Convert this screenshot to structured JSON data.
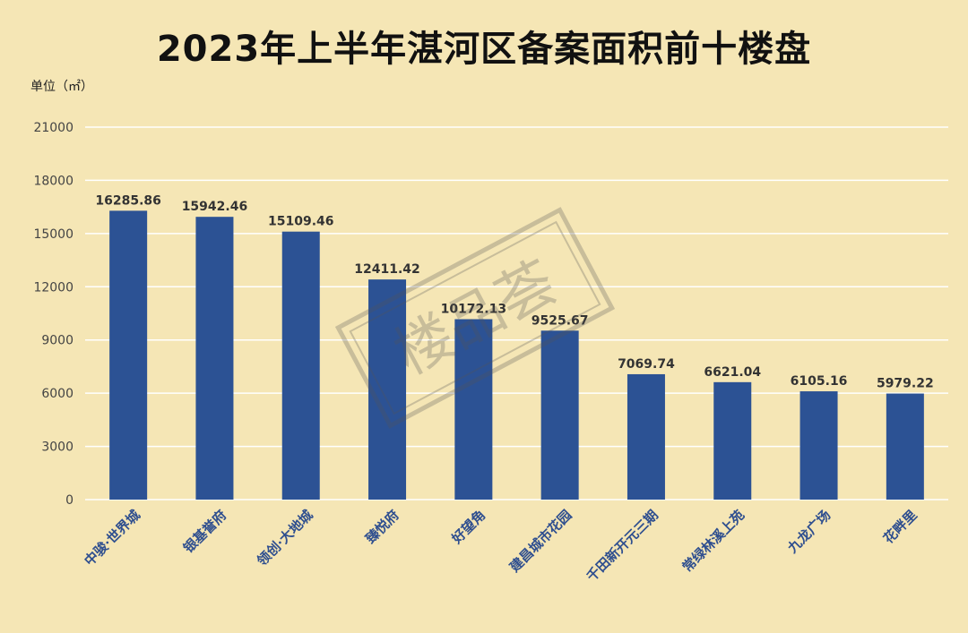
{
  "chart_data": {
    "type": "bar",
    "title": "2023年上半年湛河区备案面积前十楼盘",
    "unit_label": "单位（㎡）",
    "categories": [
      "中骏·世界城",
      "银基誉府",
      "领创·大地城",
      "臻悦府",
      "好望角",
      "建昌城市花园",
      "千田新开元三期",
      "常绿林溪上苑",
      "九龙广场",
      "花畔里"
    ],
    "values": [
      16285.86,
      15942.46,
      15109.46,
      12411.42,
      10172.13,
      9525.67,
      7069.74,
      6621.04,
      6105.16,
      5979.22
    ],
    "value_labels": [
      "16285.86",
      "15942.46",
      "15109.46",
      "12411.42",
      "10172.13",
      "9525.67",
      "7069.74",
      "6621.04",
      "6105.16",
      "5979.22"
    ],
    "yticks": [
      "0",
      "3000",
      "6000",
      "9000",
      "12000",
      "15000",
      "18000",
      "21000"
    ],
    "ylim": [
      0,
      21000
    ],
    "grid": true,
    "bar_color": "#2c5294",
    "watermark": "楼品荟"
  }
}
